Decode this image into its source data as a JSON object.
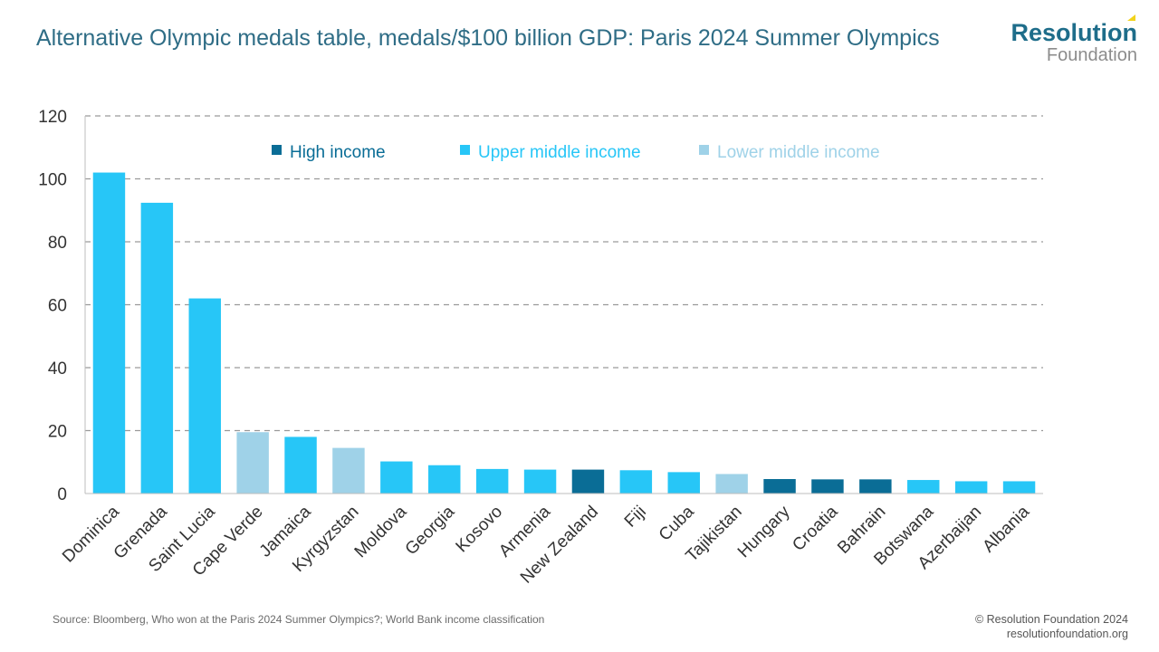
{
  "header": {
    "title": "Alternative Olympic medals table, medals/$100 billion GDP: Paris 2024 Summer Olympics",
    "logo_line1": "Resolution",
    "logo_line2": "Foundation"
  },
  "footer": {
    "source": "Source: Bloomberg, Who won at the Paris 2024 Summer Olympics?; World Bank income classification",
    "credit_line1": "© Resolution Foundation 2024",
    "credit_line2": "resolutionfoundation.org"
  },
  "colors": {
    "High income": "#0a6d96",
    "Upper middle income": "#27c6f7",
    "Lower middle income": "#9fd2e8",
    "axis_text": "#333333",
    "gridline": "#9a9a9a"
  },
  "chart_data": {
    "type": "bar",
    "title": "Alternative Olympic medals table, medals/$100 billion GDP: Paris 2024 Summer Olympics",
    "xlabel": "",
    "ylabel": "",
    "ylim": [
      0,
      120
    ],
    "yticks": [
      0,
      20,
      40,
      60,
      80,
      100,
      120
    ],
    "grid": true,
    "legend_position": "top",
    "legend": [
      "High income",
      "Upper middle income",
      "Lower middle income"
    ],
    "categories": [
      "Dominica",
      "Grenada",
      "Saint Lucia",
      "Cape Verde",
      "Jamaica",
      "Kyrgyzstan",
      "Moldova",
      "Georgia",
      "Kosovo",
      "Armenia",
      "New Zealand",
      "Fiji",
      "Cuba",
      "Tajikistan",
      "Hungary",
      "Croatia",
      "Bahrain",
      "Botswana",
      "Azerbaijan",
      "Albania"
    ],
    "values": [
      102,
      92.4,
      62,
      19.5,
      18,
      14.5,
      10.2,
      9,
      7.8,
      7.6,
      7.6,
      7.4,
      6.8,
      6.2,
      4.6,
      4.5,
      4.5,
      4.3,
      3.9,
      3.9
    ],
    "income_groups": [
      "Upper middle income",
      "Upper middle income",
      "Upper middle income",
      "Lower middle income",
      "Upper middle income",
      "Lower middle income",
      "Upper middle income",
      "Upper middle income",
      "Upper middle income",
      "Upper middle income",
      "High income",
      "Upper middle income",
      "Upper middle income",
      "Lower middle income",
      "High income",
      "High income",
      "High income",
      "Upper middle income",
      "Upper middle income",
      "Upper middle income"
    ]
  }
}
